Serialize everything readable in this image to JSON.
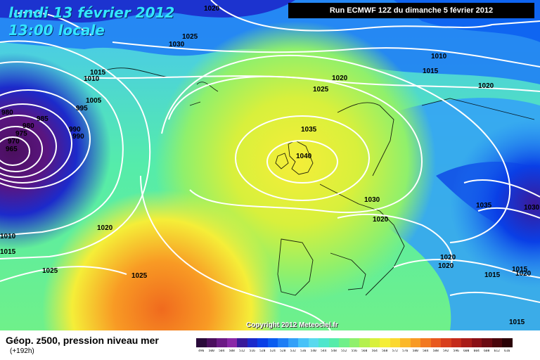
{
  "header": {
    "date_line1": "lundi 13 février 2012",
    "date_line2": "13:00 locale",
    "run_label": "Run ECMWF 12Z du dimanche 5 février 2012"
  },
  "footer": {
    "title": "Géop. z500, pression niveau mer",
    "forecast_hour": "(+192h)",
    "copyright": "Copyright 2012 Meteociel.fr"
  },
  "isobar_labels": [
    {
      "text": "1020"
    },
    {
      "text": "1025"
    },
    {
      "text": "1030"
    },
    {
      "text": "1015"
    },
    {
      "text": "1010"
    },
    {
      "text": "1005"
    },
    {
      "text": "995"
    },
    {
      "text": "980"
    },
    {
      "text": "985"
    },
    {
      "text": "980"
    },
    {
      "text": "975"
    },
    {
      "text": "970"
    },
    {
      "text": "965"
    },
    {
      "text": "990"
    },
    {
      "text": "990"
    },
    {
      "text": "1020"
    },
    {
      "text": "1025"
    },
    {
      "text": "1035"
    },
    {
      "text": "1040"
    },
    {
      "text": "1010"
    },
    {
      "text": "1015"
    },
    {
      "text": "1020"
    },
    {
      "text": "1030"
    },
    {
      "text": "1020"
    },
    {
      "text": "1035"
    },
    {
      "text": "1030"
    },
    {
      "text": "1020"
    },
    {
      "text": "1010"
    },
    {
      "text": "1015"
    },
    {
      "text": "1025"
    },
    {
      "text": "1025"
    },
    {
      "text": "1020"
    },
    {
      "text": "1020"
    },
    {
      "text": "1015"
    },
    {
      "text": "1015"
    },
    {
      "text": "1020"
    },
    {
      "text": "1015"
    }
  ],
  "legend": {
    "values": [
      "496",
      "500",
      "504",
      "508",
      "512",
      "516",
      "520",
      "524",
      "528",
      "532",
      "536",
      "540",
      "544",
      "548",
      "552",
      "556",
      "560",
      "564",
      "568",
      "572",
      "576",
      "580",
      "584",
      "588",
      "592",
      "596",
      "600",
      "604",
      "608",
      "612",
      "616"
    ],
    "colors": [
      "#2a0a3a",
      "#4b0f5e",
      "#6b1a85",
      "#8a28a8",
      "#3a1a9a",
      "#1c2acb",
      "#0a3fe6",
      "#0a5cf0",
      "#1e7df5",
      "#33a0f8",
      "#47c2f8",
      "#5ad9ee",
      "#4ee6cc",
      "#55ecaa",
      "#6ff08a",
      "#8ff06c",
      "#b4f04e",
      "#d8f03c",
      "#f5ee38",
      "#fbd830",
      "#fbb82a",
      "#f89a24",
      "#f27820",
      "#e8581e",
      "#d83e1c",
      "#c42a1a",
      "#a81c18",
      "#8a1016",
      "#6a0a12",
      "#4a060c",
      "#2a0206"
    ]
  }
}
